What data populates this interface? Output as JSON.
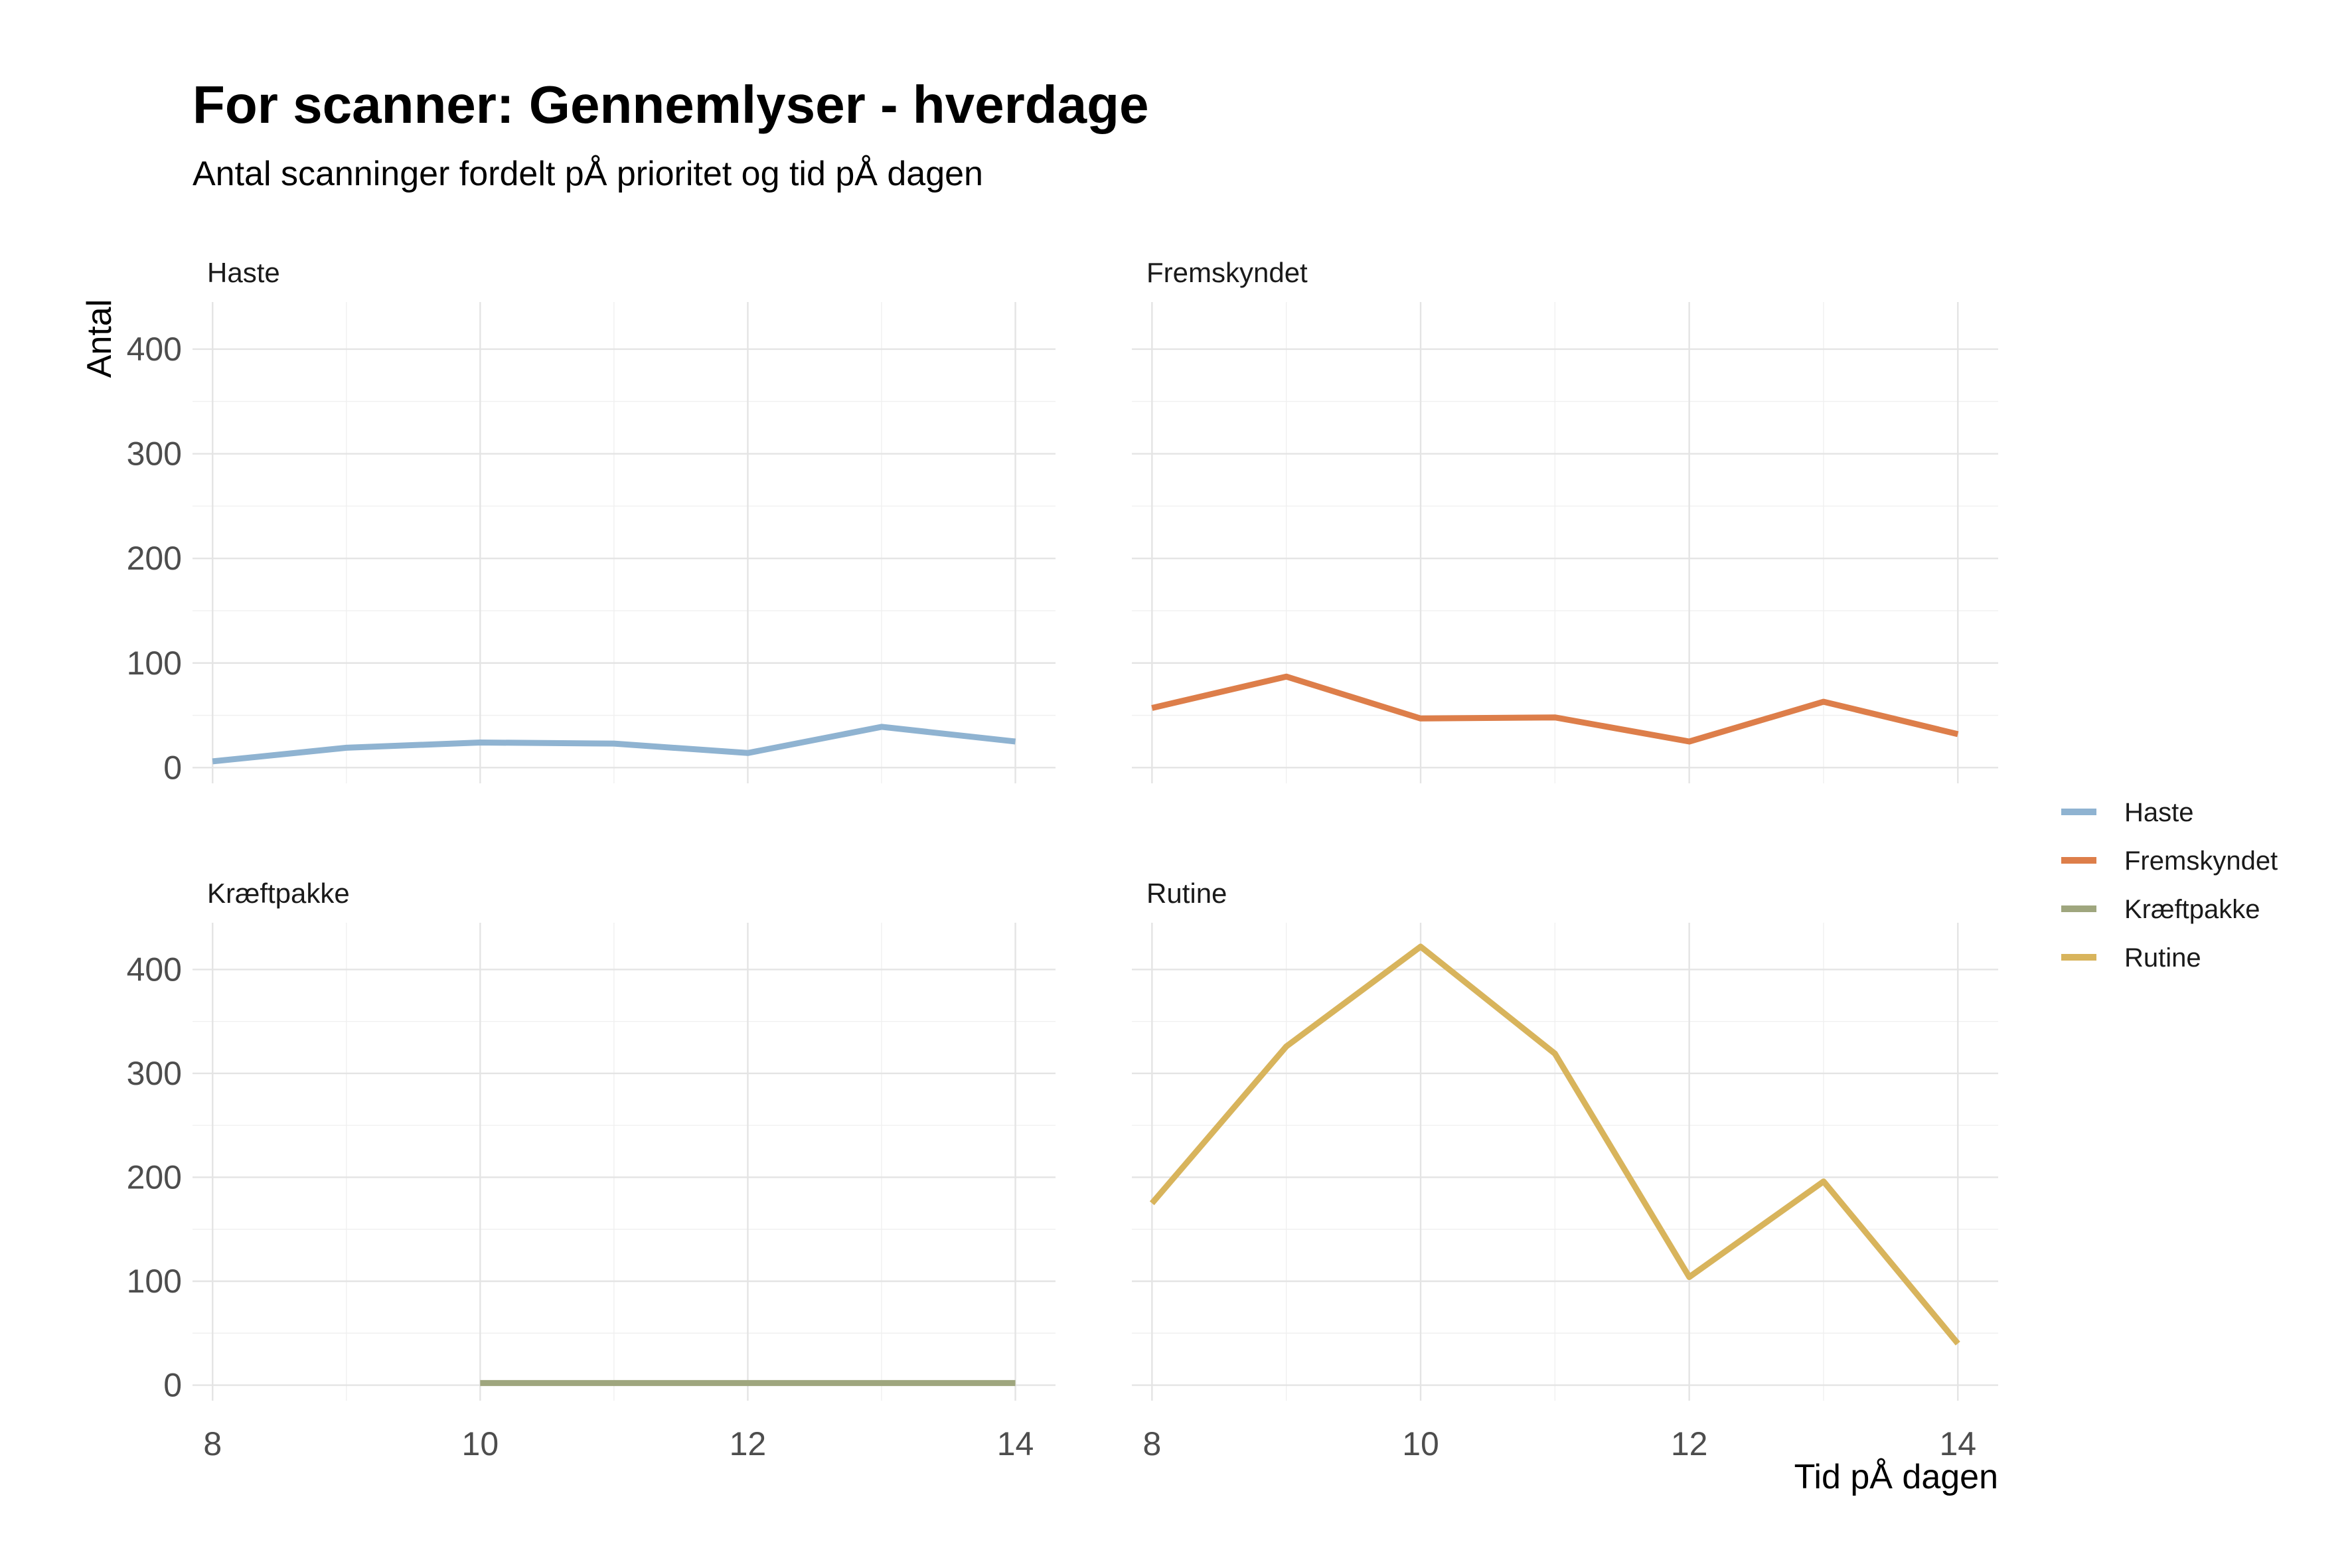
{
  "chart_data": {
    "type": "line",
    "title": "For scanner: Gennemlyser - hverdage",
    "subtitle": "Antal scanninger fordelt pÅ prioritet og tid pÅ dagen",
    "xlabel": "Tid pÅ dagen",
    "ylabel": "Antal",
    "x_ticks": [
      8,
      10,
      12,
      14
    ],
    "y_ticks": [
      0,
      100,
      200,
      300,
      400
    ],
    "xlim": [
      7.85,
      14.3
    ],
    "ylim": [
      -15,
      445
    ],
    "grid": true,
    "legend_position": "right",
    "facets": [
      {
        "label": "Haste",
        "color": "#8fb3d1",
        "x": [
          8,
          9,
          10,
          11,
          12,
          13,
          14
        ],
        "values": [
          6,
          19,
          24,
          23,
          14,
          39,
          25
        ]
      },
      {
        "label": "Fremskyndet",
        "color": "#dd7e4a",
        "x": [
          8,
          9,
          10,
          11,
          12,
          13,
          14
        ],
        "values": [
          57,
          87,
          47,
          48,
          25,
          63,
          32
        ]
      },
      {
        "label": "Kræftpakke",
        "color": "#9fa67e",
        "x": [
          10,
          11,
          12,
          13,
          14
        ],
        "values": [
          2,
          2,
          2,
          2,
          2
        ]
      },
      {
        "label": "Rutine",
        "color": "#d8b45c",
        "x": [
          8,
          9,
          10,
          11,
          12,
          13,
          14
        ],
        "values": [
          175,
          326,
          422,
          319,
          104,
          196,
          40
        ]
      }
    ]
  }
}
